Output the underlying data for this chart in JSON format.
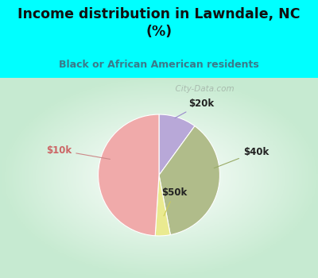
{
  "title": "Income distribution in Lawndale, NC\n(%)",
  "subtitle": "Black or African American residents",
  "slices": [
    {
      "label": "$20k",
      "value": 10,
      "color": "#B8A8D8"
    },
    {
      "label": "$40k",
      "value": 37,
      "color": "#B0BC8A"
    },
    {
      "label": "$50k",
      "value": 4,
      "color": "#EAEA90"
    },
    {
      "label": "$10k",
      "value": 49,
      "color": "#F0AAAA"
    }
  ],
  "start_angle": 90,
  "counterclock": false,
  "background_top": "#00FFFF",
  "title_color": "#111111",
  "subtitle_color": "#3A7A8A",
  "watermark": "City-Data.com",
  "label_font_size": 8.5,
  "label_colors": {
    "$20k": "#222222",
    "$40k": "#222222",
    "$50k": "#222222",
    "$10k": "#CC6666"
  },
  "line_colors": {
    "$20k": "#9988CC",
    "$40k": "#99AA66",
    "$50k": "#CCCC55",
    "$10k": "#CC8888"
  }
}
